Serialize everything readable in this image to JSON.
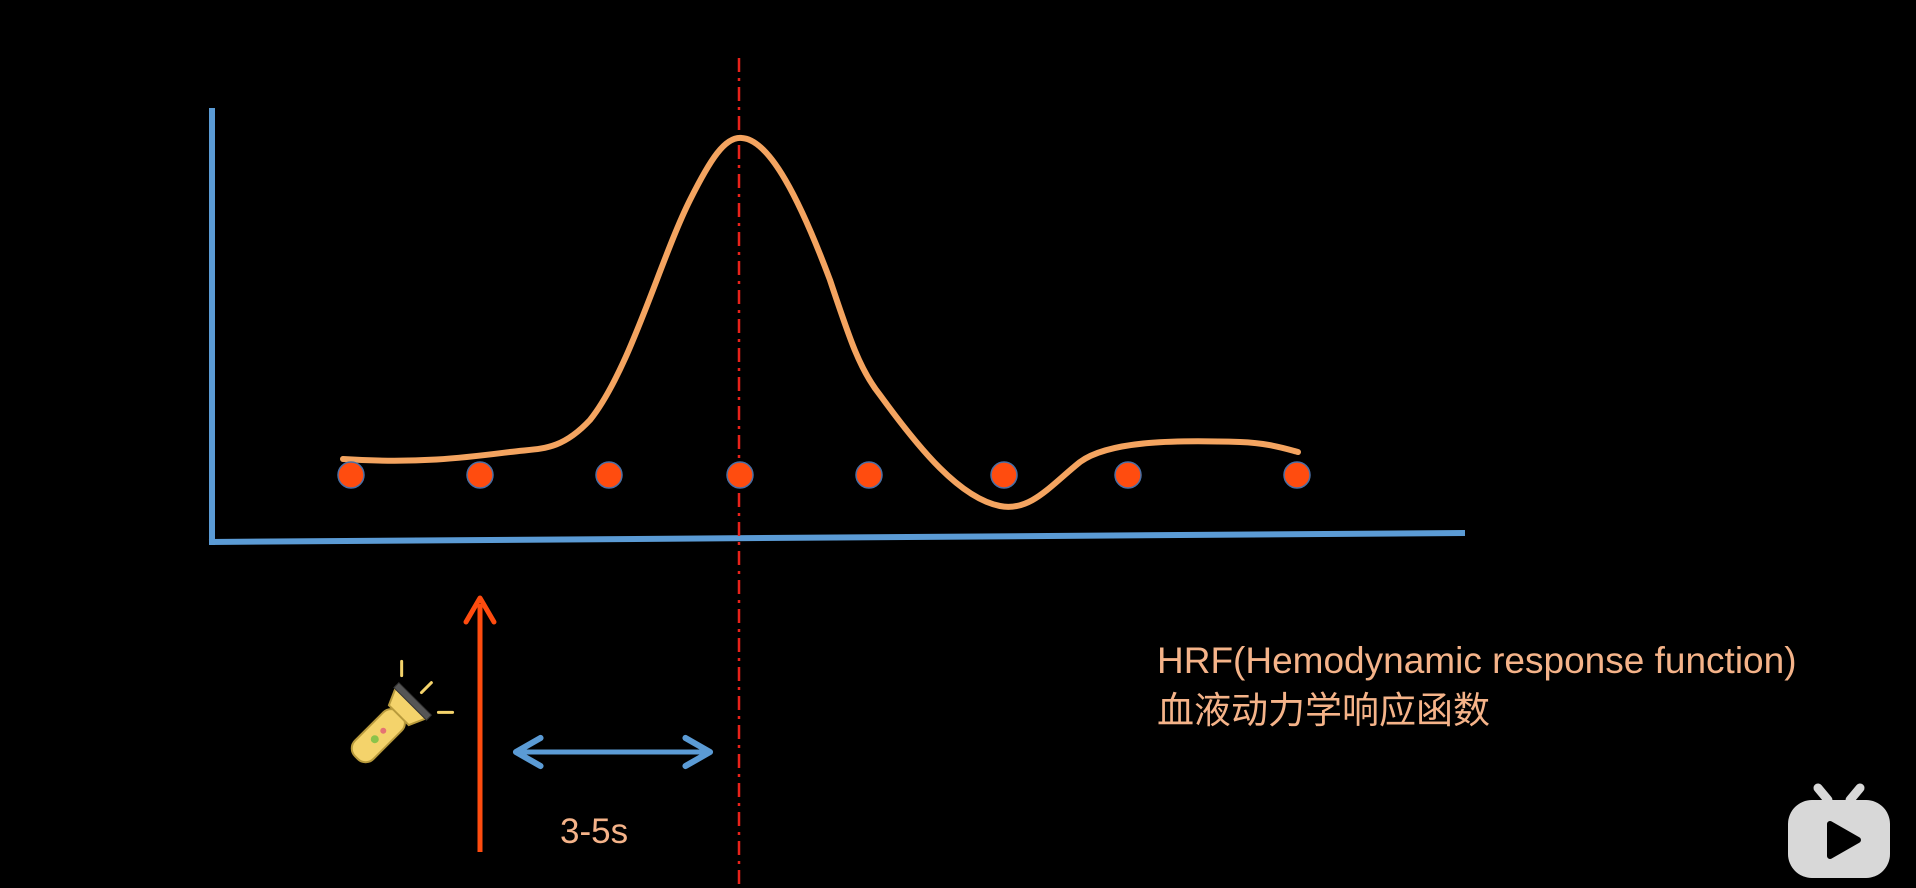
{
  "caption": {
    "line1": "HRF(Hemodynamic response function)",
    "line2": "血液动力学响应函数"
  },
  "interval": {
    "label": "3-5s"
  },
  "colors": {
    "background": "#000000",
    "axis": "#5b9bd5",
    "curve": "#f4a460",
    "samples": "#ff4c0f",
    "stimulus_arrow": "#ff4c0f",
    "peak_line": "#e8221a",
    "interval_arrow": "#5b9bd5",
    "caption_text": "#f5b389"
  },
  "icons": {
    "stimulus": "flashlight-icon",
    "logo": "tv-play-logo-icon"
  }
}
